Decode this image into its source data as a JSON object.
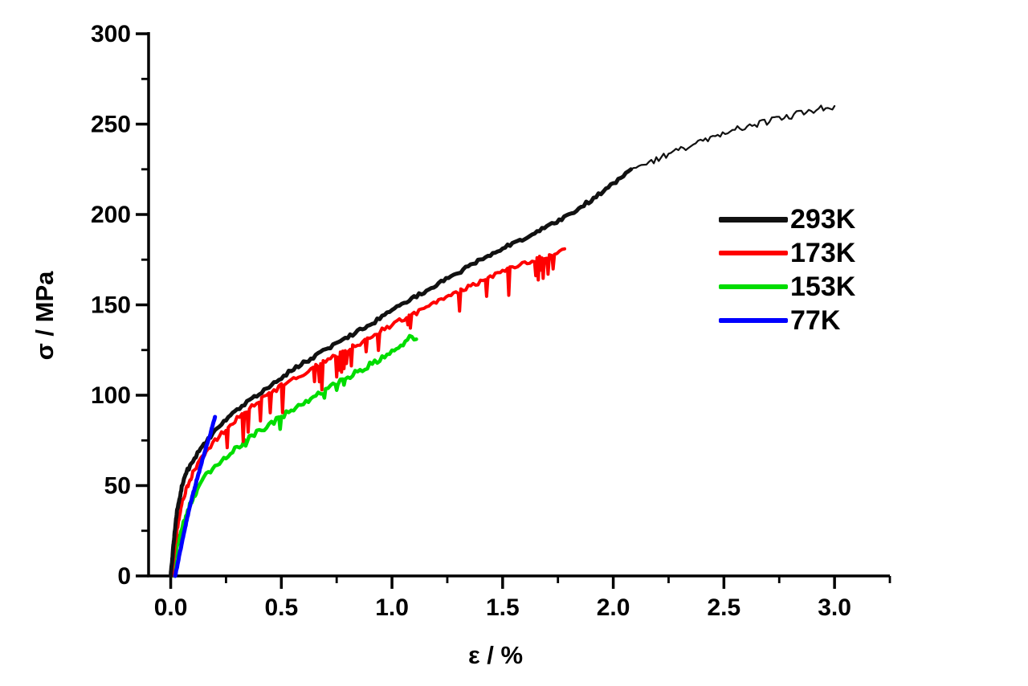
{
  "chart_data": {
    "type": "line",
    "title": "",
    "xlabel": "ε / %",
    "ylabel": "σ / MPa",
    "xlim": [
      -0.1,
      3.25
    ],
    "ylim": [
      0,
      300
    ],
    "grid": false,
    "legend_position": "right-middle",
    "x_axis": {
      "major_ticks": [
        0.0,
        0.5,
        1.0,
        1.5,
        2.0,
        2.5,
        3.0
      ],
      "major_tick_labels": [
        "0.0",
        "0.5",
        "1.0",
        "1.5",
        "2.0",
        "2.5",
        "3.0"
      ],
      "minor_ticks": [
        0.25,
        0.75,
        1.25,
        1.75,
        2.25,
        2.75,
        3.25
      ]
    },
    "y_axis": {
      "major_ticks": [
        0,
        50,
        100,
        150,
        200,
        250,
        300
      ],
      "major_tick_labels": [
        "0",
        "50",
        "100",
        "150",
        "200",
        "250",
        "300"
      ],
      "minor_ticks": [
        25,
        75,
        125,
        175,
        225,
        275
      ]
    },
    "series": [
      {
        "name": "153K",
        "color": "#00dd00",
        "width": 4.5,
        "noise_mpa": 1.6,
        "seed": 3007,
        "serrations": {
          "from_x": 0.3,
          "prob": 0.08,
          "depth_mpa": [
            2,
            6
          ]
        },
        "points": [
          [
            0.01,
            0
          ],
          [
            0.02,
            10
          ],
          [
            0.04,
            22
          ],
          [
            0.06,
            30
          ],
          [
            0.09,
            40
          ],
          [
            0.12,
            48
          ],
          [
            0.15,
            54
          ],
          [
            0.18,
            58
          ],
          [
            0.22,
            63
          ],
          [
            0.26,
            67
          ],
          [
            0.3,
            71
          ],
          [
            0.4,
            80
          ],
          [
            0.5,
            88
          ],
          [
            0.6,
            96
          ],
          [
            0.7,
            103
          ],
          [
            0.8,
            110
          ],
          [
            0.9,
            117
          ],
          [
            1.0,
            124
          ],
          [
            1.05,
            128
          ],
          [
            1.09,
            133
          ],
          [
            1.11,
            131
          ]
        ]
      },
      {
        "name": "173K",
        "color": "#ff0000",
        "width": 4,
        "noise_mpa": 1.3,
        "seed": 2003,
        "serrations": {
          "from_x": 0.22,
          "prob": 0.2,
          "depth_mpa": [
            4,
            15
          ]
        },
        "points": [
          [
            0.005,
            0
          ],
          [
            0.015,
            12
          ],
          [
            0.03,
            26
          ],
          [
            0.05,
            40
          ],
          [
            0.07,
            48
          ],
          [
            0.1,
            57
          ],
          [
            0.13,
            63
          ],
          [
            0.16,
            69
          ],
          [
            0.2,
            75
          ],
          [
            0.25,
            81
          ],
          [
            0.3,
            87
          ],
          [
            0.4,
            97
          ],
          [
            0.5,
            105
          ],
          [
            0.6,
            112
          ],
          [
            0.7,
            119
          ],
          [
            0.8,
            125
          ],
          [
            0.9,
            132
          ],
          [
            1.0,
            139
          ],
          [
            1.1,
            145
          ],
          [
            1.2,
            151
          ],
          [
            1.3,
            157
          ],
          [
            1.4,
            163
          ],
          [
            1.5,
            168
          ],
          [
            1.6,
            173
          ],
          [
            1.7,
            177
          ],
          [
            1.78,
            181
          ]
        ]
      },
      {
        "name": "293K",
        "color": "#111111",
        "width": 5,
        "noise_mpa": 1.0,
        "seed": 1001,
        "points": [
          [
            0.0,
            0
          ],
          [
            0.01,
            14
          ],
          [
            0.02,
            27
          ],
          [
            0.03,
            37
          ],
          [
            0.05,
            49
          ],
          [
            0.07,
            57
          ],
          [
            0.1,
            64
          ],
          [
            0.15,
            73
          ],
          [
            0.2,
            80
          ],
          [
            0.25,
            86
          ],
          [
            0.3,
            92
          ],
          [
            0.4,
            101
          ],
          [
            0.5,
            110
          ],
          [
            0.6,
            118
          ],
          [
            0.7,
            125
          ],
          [
            0.8,
            132
          ],
          [
            0.9,
            139
          ],
          [
            1.0,
            147
          ],
          [
            1.1,
            154
          ],
          [
            1.2,
            161
          ],
          [
            1.3,
            168
          ],
          [
            1.4,
            175
          ],
          [
            1.5,
            181
          ],
          [
            1.6,
            187
          ],
          [
            1.7,
            193
          ],
          [
            1.8,
            200
          ],
          [
            1.9,
            208
          ],
          [
            2.0,
            217
          ],
          [
            2.08,
            225
          ]
        ]
      },
      {
        "name": "293K-extension",
        "color": "#111111",
        "width": 2.2,
        "noise_mpa": 1.8,
        "seed": 1002,
        "in_legend": false,
        "points": [
          [
            2.08,
            225
          ],
          [
            2.15,
            228
          ],
          [
            2.25,
            233
          ],
          [
            2.35,
            238
          ],
          [
            2.45,
            243
          ],
          [
            2.55,
            247
          ],
          [
            2.65,
            250
          ],
          [
            2.75,
            253
          ],
          [
            2.85,
            256
          ],
          [
            2.95,
            259
          ],
          [
            3.0,
            260
          ]
        ]
      },
      {
        "name": "77K",
        "color": "#0000ff",
        "width": 5,
        "noise_mpa": 0.5,
        "seed": 4001,
        "points": [
          [
            0.02,
            0
          ],
          [
            0.04,
            12
          ],
          [
            0.06,
            24
          ],
          [
            0.08,
            35
          ],
          [
            0.1,
            45
          ],
          [
            0.12,
            54
          ],
          [
            0.14,
            63
          ],
          [
            0.16,
            71
          ],
          [
            0.18,
            79
          ],
          [
            0.2,
            88
          ]
        ]
      }
    ],
    "legend": [
      {
        "label": "293K",
        "color": "#111111",
        "sample_thickness": 7
      },
      {
        "label": "173K",
        "color": "#ff0000",
        "sample_thickness": 6
      },
      {
        "label": "153K",
        "color": "#00dd00",
        "sample_thickness": 6
      },
      {
        "label": "77K",
        "color": "#0000ff",
        "sample_thickness": 6
      }
    ]
  }
}
